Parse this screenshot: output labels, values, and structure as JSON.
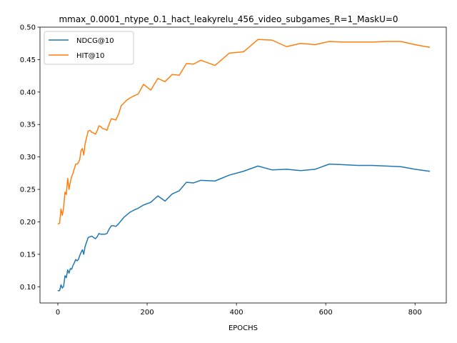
{
  "chart_data": {
    "type": "line",
    "title": "mmax_0.0001_ntype_0.1_hact_leakyrelu_456_video_subgames_R=1_MaskU=0",
    "xlabel": "EPOCHS",
    "ylabel": "",
    "xlim": [
      -40,
      870
    ],
    "ylim": [
      0.075,
      0.5
    ],
    "x_ticks": [
      0,
      200,
      400,
      600,
      800
    ],
    "y_ticks": [
      0.1,
      0.15,
      0.2,
      0.25,
      0.3,
      0.35,
      0.4,
      0.45,
      0.5
    ],
    "x_tick_labels": [
      "0",
      "200",
      "400",
      "600",
      "800"
    ],
    "y_tick_labels": [
      "0.10",
      "0.15",
      "0.20",
      "0.25",
      "0.30",
      "0.35",
      "0.40",
      "0.45",
      "0.50"
    ],
    "grid": false,
    "legend_position": "top-left",
    "series": [
      {
        "name": "NDCG@10",
        "color": "#1f77b4",
        "x": [
          1,
          4,
          7,
          10,
          13,
          16,
          19,
          22,
          25,
          28,
          31,
          34,
          37,
          40,
          43,
          46,
          49,
          52,
          55,
          58,
          61,
          64,
          68,
          72,
          76,
          80,
          84,
          88,
          92,
          96,
          100,
          105,
          110,
          115,
          120,
          125,
          130,
          136,
          142,
          148,
          155,
          162,
          170,
          180,
          192,
          208,
          224,
          240,
          256,
          272,
          288,
          304,
          320,
          352,
          384,
          416,
          448,
          480,
          512,
          544,
          576,
          608,
          640,
          672,
          704,
          736,
          768,
          800,
          832
        ],
        "y": [
          0.094,
          0.094,
          0.103,
          0.098,
          0.101,
          0.117,
          0.114,
          0.126,
          0.121,
          0.128,
          0.127,
          0.133,
          0.137,
          0.142,
          0.14,
          0.142,
          0.148,
          0.153,
          0.157,
          0.15,
          0.162,
          0.168,
          0.176,
          0.177,
          0.178,
          0.176,
          0.174,
          0.177,
          0.182,
          0.181,
          0.181,
          0.181,
          0.182,
          0.189,
          0.194,
          0.194,
          0.193,
          0.197,
          0.202,
          0.207,
          0.211,
          0.215,
          0.218,
          0.221,
          0.226,
          0.23,
          0.24,
          0.232,
          0.243,
          0.248,
          0.261,
          0.26,
          0.264,
          0.263,
          0.272,
          0.278,
          0.286,
          0.28,
          0.281,
          0.279,
          0.281,
          0.289,
          0.288,
          0.287,
          0.287,
          0.286,
          0.285,
          0.281,
          0.278
        ]
      },
      {
        "name": "HIT@10",
        "color": "#ff7f0e",
        "x": [
          1,
          4,
          7,
          10,
          13,
          16,
          19,
          22,
          25,
          28,
          31,
          34,
          37,
          40,
          43,
          46,
          49,
          52,
          55,
          58,
          61,
          64,
          68,
          72,
          76,
          80,
          84,
          88,
          92,
          96,
          100,
          105,
          110,
          115,
          120,
          125,
          130,
          136,
          142,
          148,
          155,
          162,
          170,
          180,
          192,
          208,
          224,
          240,
          256,
          272,
          288,
          304,
          320,
          352,
          384,
          416,
          448,
          480,
          512,
          544,
          576,
          608,
          640,
          672,
          704,
          736,
          768,
          800,
          832
        ],
        "y": [
          0.197,
          0.198,
          0.22,
          0.21,
          0.222,
          0.246,
          0.242,
          0.267,
          0.25,
          0.262,
          0.27,
          0.275,
          0.282,
          0.289,
          0.289,
          0.291,
          0.296,
          0.31,
          0.313,
          0.303,
          0.32,
          0.329,
          0.34,
          0.341,
          0.338,
          0.337,
          0.335,
          0.34,
          0.348,
          0.347,
          0.344,
          0.343,
          0.341,
          0.351,
          0.359,
          0.358,
          0.357,
          0.366,
          0.379,
          0.383,
          0.388,
          0.391,
          0.394,
          0.397,
          0.412,
          0.403,
          0.421,
          0.416,
          0.427,
          0.426,
          0.444,
          0.443,
          0.449,
          0.441,
          0.46,
          0.462,
          0.481,
          0.48,
          0.47,
          0.475,
          0.473,
          0.478,
          0.477,
          0.477,
          0.477,
          0.478,
          0.478,
          0.473,
          0.469
        ]
      }
    ]
  }
}
